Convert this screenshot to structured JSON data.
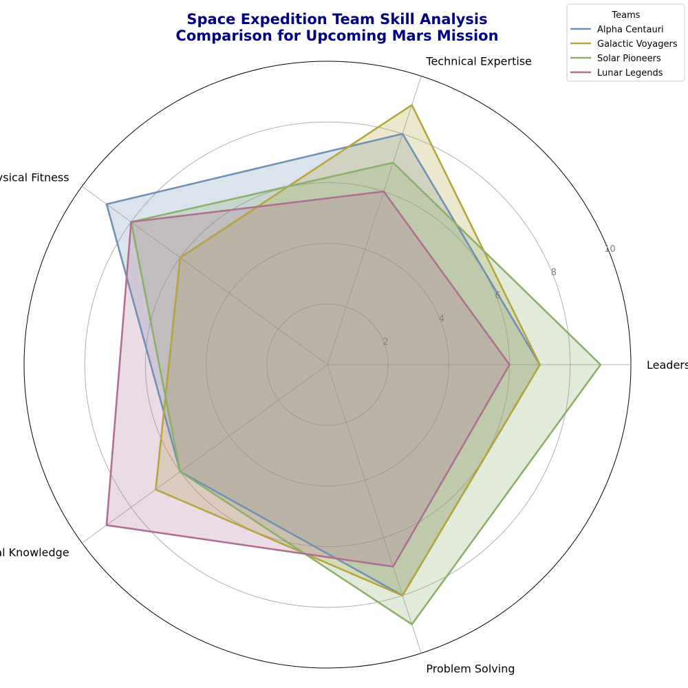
{
  "chart_data": {
    "type": "radar",
    "title": [
      "Space Expedition Team Skill Analysis",
      "Comparison for Upcoming Mars Mission"
    ],
    "axes": [
      "Leadership",
      "Technical Expertise",
      "Physical Fitness",
      "Medical Knowledge",
      "Problem Solving"
    ],
    "rlim": [
      0,
      10
    ],
    "rticks": [
      2,
      4,
      6,
      8,
      10
    ],
    "grid": true,
    "legend": {
      "title": "Teams",
      "placement": "top-right"
    },
    "series": [
      {
        "name": "Alpha Centauri",
        "color": "#6f91b5",
        "values": [
          7,
          8,
          9,
          6,
          8
        ]
      },
      {
        "name": "Galactic Voyagers",
        "color": "#b5a53c",
        "values": [
          7,
          9,
          6,
          7,
          8
        ]
      },
      {
        "name": "Solar Pioneers",
        "color": "#8cb06c",
        "values": [
          9,
          7,
          8,
          6,
          9
        ]
      },
      {
        "name": "Lunar Legends",
        "color": "#b06f92",
        "values": [
          6,
          6,
          8,
          9,
          7
        ]
      }
    ]
  }
}
